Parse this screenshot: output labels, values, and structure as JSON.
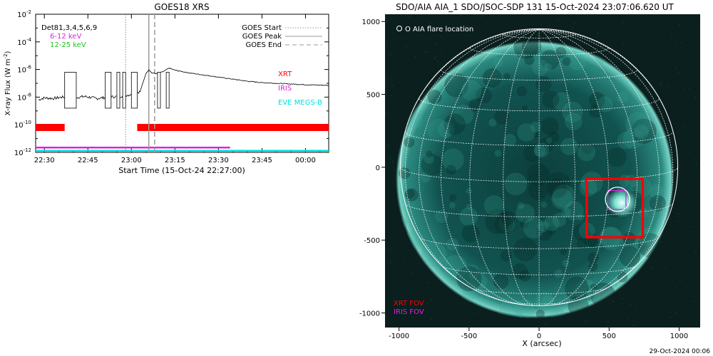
{
  "chart_data": [
    {
      "type": "line",
      "title": "GOES18 XRS",
      "xlabel": "Start Time (15-Oct-24 22:27:00)",
      "ylabel": "X-ray Flux (W m⁻²)",
      "ylabel_text": "X-ray Flux (W m",
      "ylabel_exp": "-2",
      "ylabel_close": ")",
      "y_scale": "log",
      "ylim_exp": [
        -12,
        -2
      ],
      "xlim": [
        "22:27",
        "00:08"
      ],
      "x_ticks": [
        "22:30",
        "22:45",
        "23:00",
        "23:15",
        "23:30",
        "23:45",
        "00:00"
      ],
      "y_tick_exps": [
        "-2",
        "-4",
        "-6",
        "-8",
        "-10",
        "-12"
      ],
      "y_tick_base": "10",
      "legend": [
        "GOES Start",
        "GOES Peak",
        "GOES End"
      ],
      "goes_start": "22:58",
      "goes_peak": "23:06",
      "goes_end": "23:08",
      "energy_labels": [
        {
          "text": "Det81,3,4,5,6,9",
          "color": "#000000"
        },
        {
          "text": "6-12 keV",
          "color": "#e020e0"
        },
        {
          "text": "12-25 keV",
          "color": "#20c020"
        }
      ],
      "instrument_labels": [
        {
          "text": "XRT",
          "color": "#ff0000"
        },
        {
          "text": "IRIS",
          "color": "#e020e0"
        },
        {
          "text": "EVE MEGS-B",
          "color": "#00e0e0"
        }
      ],
      "series": [
        {
          "name": "GOES",
          "points": [
            [
              "22:28",
              -8.2
            ],
            [
              "22:30",
              -8.05
            ],
            [
              "22:33",
              -8.1
            ],
            [
              "22:36",
              -8.0
            ],
            [
              "22:40",
              -8.05
            ],
            [
              "22:44",
              -7.95
            ],
            [
              "22:48",
              -8.1
            ],
            [
              "22:52",
              -8.0
            ],
            [
              "22:56",
              -7.95
            ],
            [
              "23:00",
              -7.8
            ],
            [
              "23:03",
              -7.6
            ],
            [
              "23:05",
              -6.3
            ],
            [
              "23:06",
              -6.0
            ],
            [
              "23:07",
              -6.25
            ],
            [
              "23:09",
              -6.3
            ],
            [
              "23:11",
              -6.15
            ],
            [
              "23:13",
              -5.9
            ],
            [
              "23:15",
              -6.05
            ],
            [
              "23:20",
              -6.25
            ],
            [
              "23:25",
              -6.4
            ],
            [
              "23:30",
              -6.55
            ],
            [
              "23:35",
              -6.7
            ],
            [
              "23:40",
              -6.85
            ],
            [
              "23:45",
              -6.95
            ],
            [
              "23:50",
              -7.0
            ],
            [
              "23:55",
              -7.05
            ],
            [
              "00:00",
              -7.1
            ],
            [
              "00:08",
              -7.15
            ]
          ]
        }
      ],
      "gaps": [
        [
          "22:37",
          "22:41"
        ],
        [
          "22:51",
          "22:53"
        ],
        [
          "22:55",
          "22:56"
        ],
        [
          "22:57",
          "22:58"
        ],
        [
          "23:00",
          "23:02"
        ],
        [
          "23:09",
          "23:10"
        ],
        [
          "23:12",
          "23:13"
        ]
      ],
      "xrt_intervals": [
        [
          "22:27",
          "22:37"
        ],
        [
          "23:02",
          "00:08"
        ]
      ],
      "iris_interval": [
        "22:27",
        "23:34"
      ],
      "eve_interval": [
        "22:27",
        "00:08"
      ]
    },
    {
      "type": "scatter",
      "title": "SDO/AIA AIA_1 SDO/JSOC-SDP 131 15-Oct-2024 23:07:06.620 UT",
      "xlabel": "X (arcsec)",
      "ylabel": "",
      "xlim": [
        -1100,
        1150
      ],
      "ylim": [
        -1100,
        1050
      ],
      "x_ticks": [
        -1000,
        -500,
        0,
        500,
        1000
      ],
      "y_ticks": [
        1000,
        500,
        0,
        -500,
        -1000
      ],
      "legend": "O AIA flare location",
      "flare_location": [
        560,
        -220
      ],
      "xrt_fov_box": {
        "x0": 340,
        "x1": 740,
        "y0": -480,
        "y1": -80
      },
      "iris_fov_box": {
        "x0": 490,
        "x1": 620,
        "y0": -290,
        "y1": -160
      },
      "fov_labels": [
        {
          "text": "XRT FOV",
          "color": "#ff0000"
        },
        {
          "text": "IRIS FOV",
          "color": "#e020e0"
        }
      ],
      "solar_radius_arcsec": 990
    }
  ],
  "footer": {
    "date": "29-Oct-2024 00:06"
  }
}
